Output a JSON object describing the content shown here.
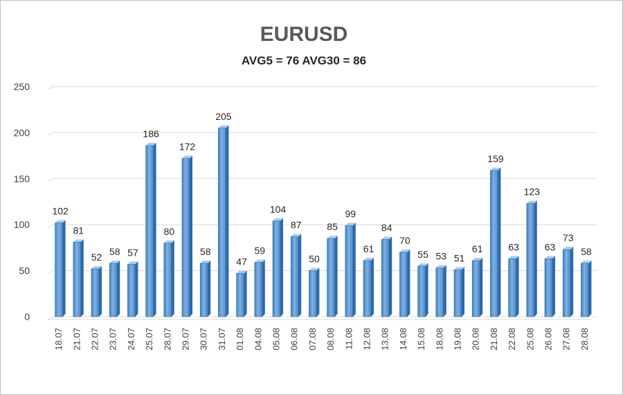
{
  "chart_data": {
    "type": "bar",
    "title": "EURUSD",
    "subtitle": "AVG5 = 76 AVG30 = 86",
    "xlabel": "",
    "ylabel": "",
    "ylim": [
      0,
      250
    ],
    "yticks": [
      "0",
      "50",
      "100",
      "150",
      "200",
      "250"
    ],
    "grid": true,
    "legend": "none",
    "bar_color": "#5b9bd5",
    "categories": [
      "18.07",
      "21.07",
      "22.07",
      "23.07",
      "24.07",
      "25.07",
      "28.07",
      "29.07",
      "30.07",
      "31.07",
      "01.08",
      "04.08",
      "05.08",
      "06.08",
      "07.08",
      "08.08",
      "11.08",
      "12.08",
      "13.08",
      "14.08",
      "15.08",
      "18.08",
      "19.08",
      "20.08",
      "21.08",
      "22.08",
      "25.08",
      "26.08",
      "27.08",
      "28.08"
    ],
    "values": [
      102,
      81,
      52,
      58,
      57,
      186,
      80,
      172,
      58,
      205,
      47,
      59,
      104,
      87,
      50,
      85,
      99,
      61,
      84,
      70,
      55,
      53,
      51,
      61,
      159,
      63,
      123,
      63,
      73,
      58
    ]
  }
}
